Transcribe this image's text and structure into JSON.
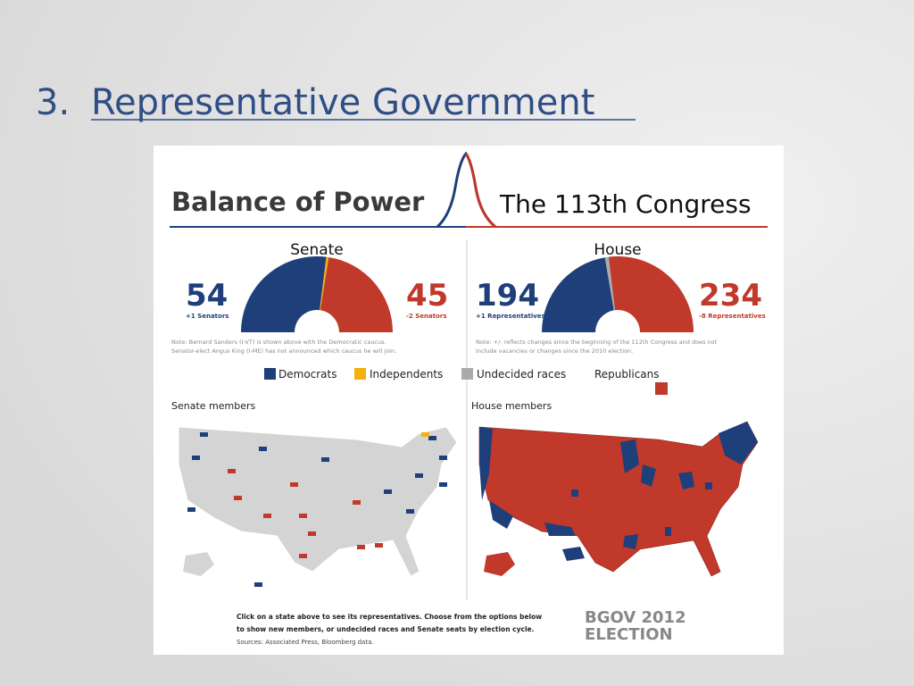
{
  "slide": {
    "number": "3.",
    "title": "Representative Government"
  },
  "header": {
    "left": "Balance of Power",
    "right": "The 113th Congress"
  },
  "senate": {
    "title": "Senate",
    "dem": "54",
    "dem_change": "+1 Senators",
    "rep": "45",
    "rep_change": "-2 Senators",
    "note": [
      "Note: Bernard Sanders (I-VT) is shown above with the Democratic caucus.",
      "Senator-elect Angus King (I-ME) has not announced which caucus he will join."
    ]
  },
  "house": {
    "title": "House",
    "dem": "194",
    "dem_change": "+1 Representatives",
    "rep": "234",
    "rep_change": "-8 Representatives",
    "note": [
      "Note: +/- reflects changes since the beginning of the 112th Congress and does not",
      "include vacancies or changes since the 2010 election."
    ]
  },
  "legend": [
    "Democrats",
    "Independents",
    "Undecided races",
    "Republicans"
  ],
  "maps": {
    "senate": "Senate members",
    "house": "House members"
  },
  "footer": {
    "lines": [
      "Click on a state above to see its representatives. Choose from the options below",
      "to show new members, or undecided races and Senate seats by election cycle.",
      "Sources: Associated Press, Bloomberg data."
    ],
    "logo_top": "BGOV 2012",
    "logo_bottom": "ELECTION"
  }
}
